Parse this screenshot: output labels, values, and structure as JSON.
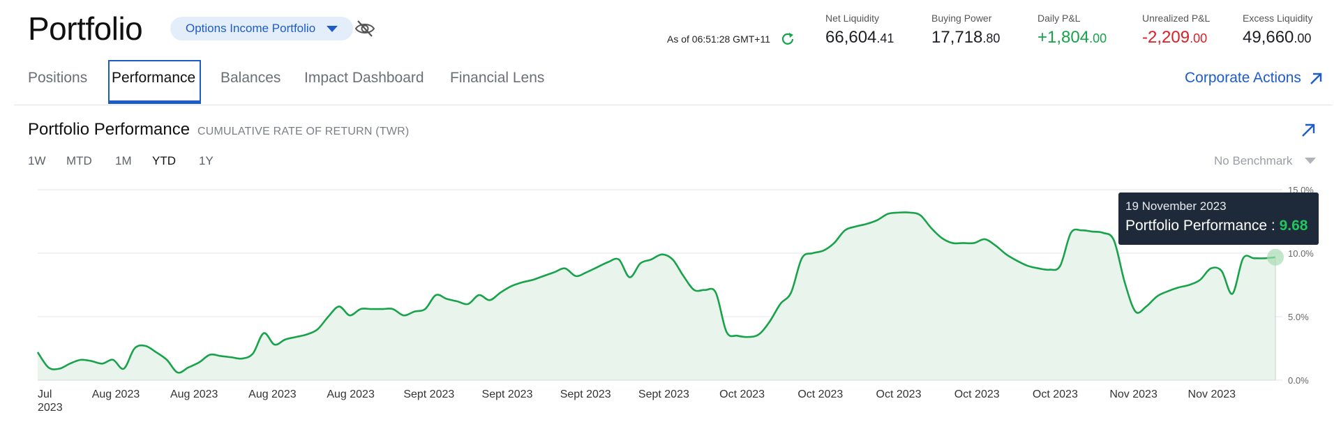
{
  "header": {
    "title": "Portfolio",
    "account_selector": "Options Income Portfolio",
    "as_of": "As of 06:51:28 GMT+11"
  },
  "metrics": [
    {
      "label": "Net Liquidity",
      "int": "66,604",
      "dec": ".41",
      "tone": "neutral"
    },
    {
      "label": "Buying Power",
      "int": "17,718",
      "dec": ".80",
      "tone": "neutral"
    },
    {
      "label": "Daily P&L",
      "int": "+1,804",
      "dec": ".00",
      "tone": "positive"
    },
    {
      "label": "Unrealized P&L",
      "int": "-2,209",
      "dec": ".00",
      "tone": "negative"
    },
    {
      "label": "Excess Liquidity",
      "int": "49,660",
      "dec": ".00",
      "tone": "neutral"
    }
  ],
  "tabs": [
    {
      "label": "Positions",
      "active": false
    },
    {
      "label": "Performance",
      "active": true
    },
    {
      "label": "Balances",
      "active": false
    },
    {
      "label": "Impact Dashboard",
      "active": false
    },
    {
      "label": "Financial Lens",
      "active": false
    }
  ],
  "corporate_actions": "Corporate Actions",
  "performance": {
    "title": "Portfolio Performance",
    "subtitle": "CUMULATIVE RATE OF RETURN (TWR)",
    "ranges": [
      "1W",
      "MTD",
      "1M",
      "YTD",
      "1Y"
    ],
    "active_range": "YTD",
    "benchmark": "No Benchmark"
  },
  "tooltip": {
    "date": "19 November 2023",
    "label": "Portfolio Performance : ",
    "value": "9.68"
  },
  "colors": {
    "accent": "#1d5cc7",
    "positive": "#16a34a",
    "negative": "#dc1f26",
    "line": "#18a34a",
    "fill": "#e9f4ec"
  },
  "chart_data": {
    "type": "area",
    "title": "",
    "xlabel": "",
    "ylabel": "",
    "y_ticks": [
      "0.0%",
      "5.0%",
      "10.0%",
      "15.0%"
    ],
    "ylim": [
      0,
      15
    ],
    "x_tick_labels": [
      "Jul 2023",
      "Aug 2023",
      "Aug 2023",
      "Aug 2023",
      "Aug 2023",
      "Sept 2023",
      "Sept 2023",
      "Sept 2023",
      "Sept 2023",
      "Oct 2023",
      "Oct 2023",
      "Oct 2023",
      "Oct 2023",
      "Oct 2023",
      "Nov 2023",
      "Nov 2023"
    ],
    "grid": true,
    "series": [
      {
        "values": [
          2.2,
          1.0,
          0.9,
          1.3,
          1.6,
          1.5,
          1.3,
          1.6,
          0.9,
          2.5,
          2.7,
          2.2,
          1.6,
          0.6,
          1.0,
          1.4,
          2.0,
          1.9,
          1.8,
          1.7,
          2.1,
          3.7,
          2.8,
          3.2,
          3.4,
          3.6,
          4.0,
          5.0,
          5.8,
          5.1,
          5.6,
          5.6,
          5.6,
          5.6,
          5.1,
          5.4,
          5.6,
          6.7,
          6.4,
          6.2,
          6.0,
          6.7,
          6.3,
          6.9,
          7.4,
          7.7,
          7.9,
          8.2,
          8.5,
          8.8,
          8.2,
          8.5,
          8.9,
          9.3,
          9.5,
          8.1,
          9.2,
          9.5,
          9.9,
          9.5,
          8.2,
          7.1,
          7.1,
          6.9,
          3.8,
          3.5,
          3.4,
          3.6,
          4.6,
          6.0,
          6.9,
          9.6,
          10.0,
          10.2,
          10.8,
          11.8,
          12.1,
          12.3,
          12.6,
          13.1,
          13.2,
          13.2,
          13.0,
          12.0,
          11.2,
          10.8,
          10.8,
          10.8,
          11.1,
          10.6,
          9.9,
          9.4,
          9.0,
          8.8,
          8.7,
          9.0,
          11.6,
          11.8,
          11.7,
          11.6,
          11.0,
          7.7,
          5.4,
          5.8,
          6.6,
          7.0,
          7.3,
          7.5,
          7.9,
          8.8,
          8.6,
          6.8,
          9.6,
          9.6,
          9.6,
          9.68
        ]
      }
    ]
  }
}
